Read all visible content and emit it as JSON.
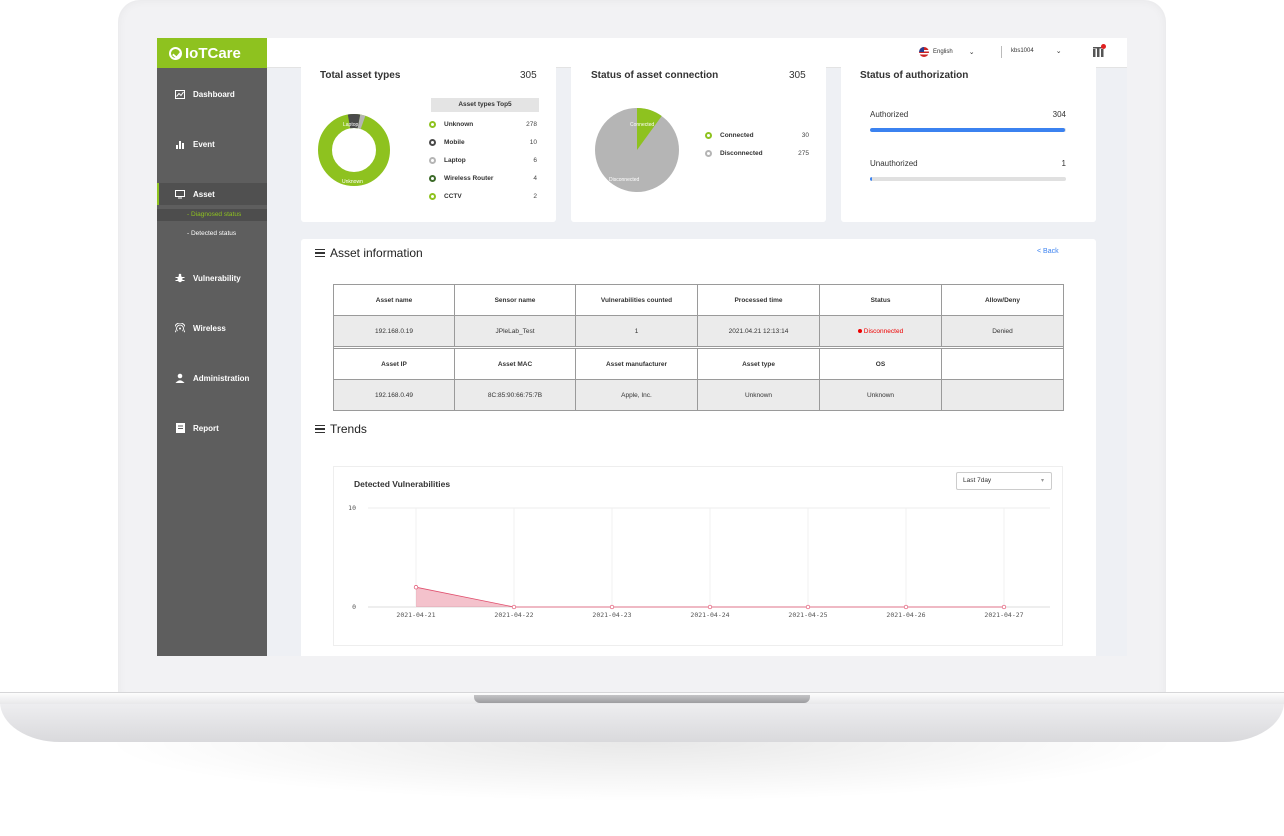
{
  "app": {
    "logo": "IoTCare"
  },
  "topbar": {
    "language": "English",
    "user": "kbs1004"
  },
  "sidebar": {
    "items": [
      {
        "label": "Dashboard"
      },
      {
        "label": "Event"
      },
      {
        "label": "Asset"
      },
      {
        "label": "Vulnerability"
      },
      {
        "label": "Wireless"
      },
      {
        "label": "Administration"
      },
      {
        "label": "Report"
      }
    ],
    "asset_sub": [
      "- Diagnosed status",
      "- Detected status"
    ]
  },
  "asset_types": {
    "title": "Total asset types",
    "total": "305",
    "top5_header": "Asset types Top5",
    "rows": [
      {
        "label": "Unknown",
        "value": "278",
        "color": "#8ec21f"
      },
      {
        "label": "Mobile",
        "value": "10",
        "color": "#4a4a4a"
      },
      {
        "label": "Laptop",
        "value": "6",
        "color": "#b5b5b5"
      },
      {
        "label": "Wireless Router",
        "value": "4",
        "color": "#3d6b2a"
      },
      {
        "label": "CCTV",
        "value": "2",
        "color": "#8ec21f"
      }
    ],
    "donut_labels": [
      "Laptop",
      "Unknown"
    ]
  },
  "connection": {
    "title": "Status of asset connection",
    "total": "305",
    "rows": [
      {
        "label": "Connected",
        "value": "30",
        "color": "#8ec21f"
      },
      {
        "label": "Disconnected",
        "value": "275",
        "color": "#b5b5b5"
      }
    ],
    "pie_labels": [
      "Connected",
      "Disconnected"
    ]
  },
  "authorization": {
    "title": "Status of authorization",
    "rows": [
      {
        "label": "Authorized",
        "value": "304",
        "fraction": 0.997
      },
      {
        "label": "Unauthorized",
        "value": "1",
        "fraction": 0.003
      }
    ]
  },
  "asset_info": {
    "title": "Asset information",
    "back": "< Back",
    "headers1": [
      "Asset name",
      "Sensor name",
      "Vulnerabilities counted",
      "Processed time",
      "Status",
      "Allow/Deny"
    ],
    "values1": [
      "192.168.0.19",
      "JPleLab_Test",
      "1",
      "2021.04.21 12:13:14",
      "Disconnected",
      "Denied"
    ],
    "headers2": [
      "Asset IP",
      "Asset MAC",
      "Asset manufacturer",
      "Asset type",
      "OS",
      ""
    ],
    "values2": [
      "192.168.0.49",
      "8C:85:90:66:75:7B",
      "Apple, Inc.",
      "Unknown",
      "Unknown",
      ""
    ]
  },
  "trends": {
    "title": "Trends",
    "range_select": "Last 7day"
  },
  "chart_data": {
    "type": "area",
    "title": "Detected Vulnerabilities",
    "x": [
      "2021-04-21",
      "2021-04-22",
      "2021-04-23",
      "2021-04-24",
      "2021-04-25",
      "2021-04-26",
      "2021-04-27"
    ],
    "values": [
      2,
      0,
      0,
      0,
      0,
      0,
      0
    ],
    "ylim": [
      0,
      10
    ],
    "yticks": [
      "0",
      "10"
    ],
    "color": "#e0506e",
    "grid": true
  }
}
